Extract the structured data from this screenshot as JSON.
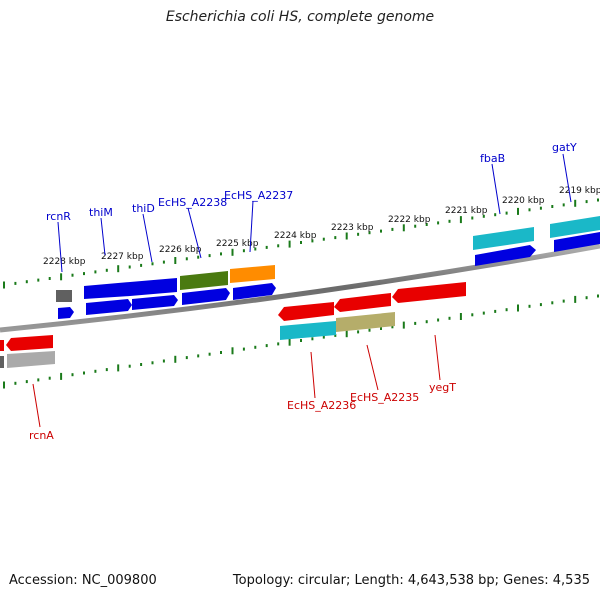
{
  "title": "Escherichia coli HS, complete genome",
  "footer": {
    "accession": "Accession: NC_009800",
    "topology": "Topology: circular; Length: 4,643,538 bp; Genes: 4,535"
  },
  "colors": {
    "forward_label": "#0000cc",
    "reverse_label": "#cc0000",
    "ruler": "#1a7a1a",
    "backbone": "#808080"
  },
  "ruler_labels": [
    "2228 kbp",
    "2227 kbp",
    "2226 kbp",
    "2225 kbp",
    "2224 kbp",
    "2223 kbp",
    "2222 kbp",
    "2221 kbp",
    "2220 kbp",
    "2219 kbp"
  ],
  "gene_labels": {
    "forward": [
      "rcnR",
      "thiM",
      "thiD",
      "EcHS_A2238",
      "EcHS_A2237",
      "fbaB",
      "gatY"
    ],
    "reverse": [
      "rcnA",
      "EcHS_A2236",
      "EcHS_A2235",
      "yegT"
    ]
  }
}
